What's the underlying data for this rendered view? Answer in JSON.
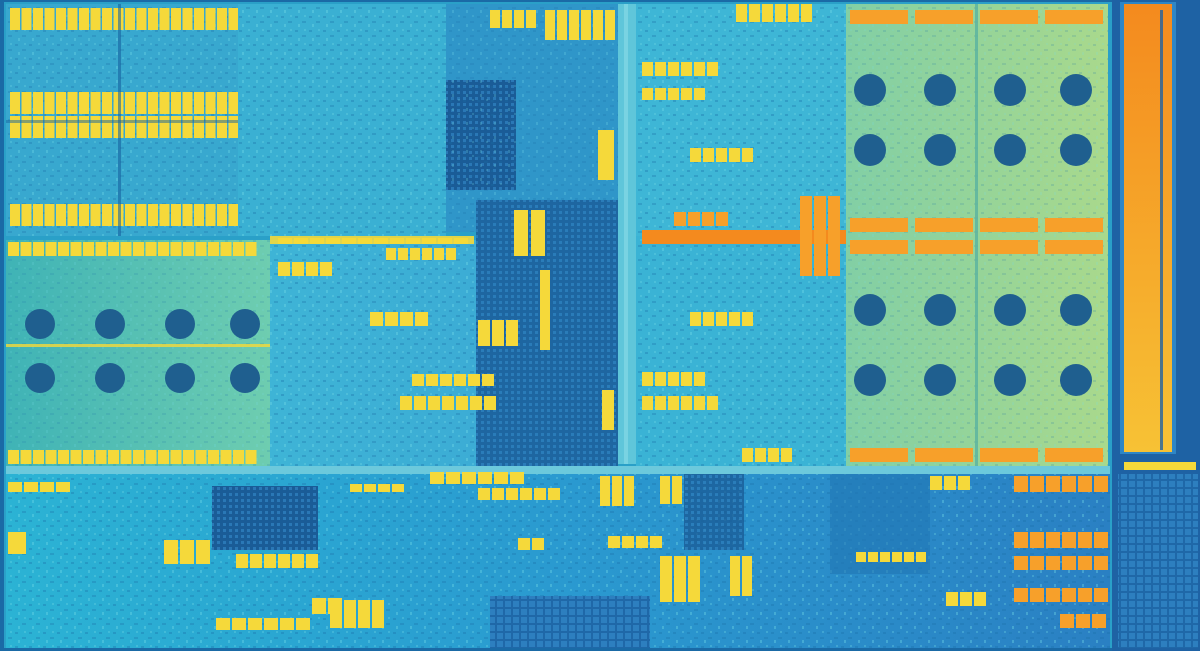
{
  "image": {
    "subject": "processor-die-shot",
    "colors": {
      "background": "#0a3f6a",
      "substrate_light": "#4fc3d8",
      "substrate_mid": "#2aa0c8",
      "substrate_dark": "#1763a0",
      "logic_deep": "#114d86",
      "core_green": "#6fc7a8",
      "core_green_light": "#9fd79a",
      "yellow_cache": "#f5d93a",
      "orange_cache": "#f7a02a",
      "orange_strip": "#f48a1e",
      "gold_strip": "#f6b72e"
    }
  }
}
